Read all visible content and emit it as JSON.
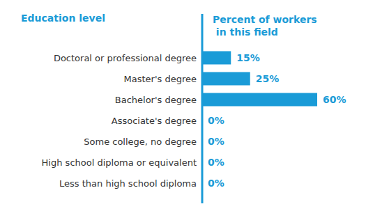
{
  "chart_data": {
    "type": "bar",
    "orientation": "horizontal",
    "ylabel": "Education level",
    "xlabel": "Percent of workers in this field",
    "categories": [
      "Doctoral or professional degree",
      "Master's degree",
      "Bachelor's degree",
      "Associate's degree",
      "Some college, no degree",
      "High school diploma or equivalent",
      "Less than high school diploma"
    ],
    "values": [
      15,
      25,
      60,
      0,
      0,
      0,
      0
    ],
    "value_labels": [
      "15%",
      "25%",
      "60%",
      "0%",
      "0%",
      "0%",
      "0%"
    ],
    "color": "#1a9bd7",
    "xlim": [
      0,
      60
    ],
    "grid": false,
    "data_labels": true,
    "tick_labels": "y"
  }
}
